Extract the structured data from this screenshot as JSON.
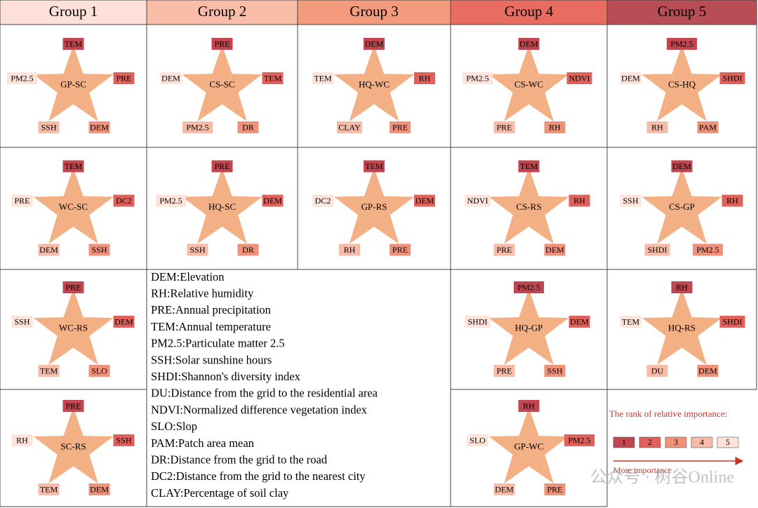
{
  "header": {
    "groups": [
      {
        "label": "Group 1",
        "color": "#fde1d8"
      },
      {
        "label": "Group 2",
        "color": "#f9bda8"
      },
      {
        "label": "Group 3",
        "color": "#f49b7d"
      },
      {
        "label": "Group 4",
        "color": "#e96c61"
      },
      {
        "label": "Group 5",
        "color": "#b94d56"
      }
    ]
  },
  "cells": [
    {
      "name": "GP-SC",
      "factors": [
        "TEM",
        "PRE",
        "DEM",
        "SSH",
        "PM2.5"
      ]
    },
    {
      "name": "CS-SC",
      "factors": [
        "PRE",
        "TEM",
        "DR",
        "PM2.5",
        "DEM"
      ]
    },
    {
      "name": "HQ-WC",
      "factors": [
        "DEM",
        "RH",
        "PRE",
        "CLAY",
        "TEM"
      ]
    },
    {
      "name": "CS-WC",
      "factors": [
        "DEM",
        "NDVI",
        "RH",
        "PRE",
        "PM2.5"
      ]
    },
    {
      "name": "CS-HQ",
      "factors": [
        "PM2.5",
        "SHDI",
        "PAM",
        "RH",
        "DEM"
      ]
    },
    {
      "name": "WC-SC",
      "factors": [
        "TEM",
        "DC2",
        "SSH",
        "DEM",
        "PRE"
      ]
    },
    {
      "name": "HQ-SC",
      "factors": [
        "PRE",
        "DEM",
        "DR",
        "SSH",
        "PM2.5"
      ]
    },
    {
      "name": "GP-RS",
      "factors": [
        "TEM",
        "DEM",
        "PRE",
        "RH",
        "DC2"
      ]
    },
    {
      "name": "CS-RS",
      "factors": [
        "TEM",
        "RH",
        "DEM",
        "PRE",
        "NDVI"
      ]
    },
    {
      "name": "CS-GP",
      "factors": [
        "DEM",
        "RH",
        "PM2.5",
        "SHDI",
        "SSH"
      ]
    },
    {
      "name": "WC-RS",
      "factors": [
        "PRE",
        "DEM",
        "SLO",
        "TEM",
        "SSH"
      ]
    },
    {
      "name": "HQ-GP",
      "factors": [
        "PM2.5",
        "DEM",
        "SSH",
        "PRE",
        "SHDI"
      ]
    },
    {
      "name": "HQ-RS",
      "factors": [
        "RH",
        "SHDI",
        "DEM",
        "DU",
        "TEM"
      ]
    },
    {
      "name": "SC-RS",
      "factors": [
        "PRE",
        "SSH",
        "DEM",
        "TEM",
        "RH"
      ]
    },
    {
      "name": "GP-WC",
      "factors": [
        "RH",
        "PM2.5",
        "PRE",
        "DEM",
        "SLO"
      ]
    }
  ],
  "glossary": [
    "DEM:Elevation",
    "RH:Relative humidity",
    "PRE:Annual precipitation",
    "TEM:Annual temperature",
    "PM2.5:Particulate matter 2.5",
    "SSH:Solar sunshine hours",
    "SHDI:Shannon's diversity index",
    "DU:Distance from the grid to the residential area",
    "NDVI:Normalized difference vegetation index",
    "SLO:Slop",
    "PAM:Patch area mean",
    "DR:Distance from the grid to the road",
    "DC2:Distance from the grid to the nearest city",
    "CLAY:Percentage of soil clay"
  ],
  "legend": {
    "title": "The rank of relative importance:",
    "ranks": [
      {
        "label": "1",
        "color": "#c0464f"
      },
      {
        "label": "2",
        "color": "#e0605a"
      },
      {
        "label": "3",
        "color": "#f0917a"
      },
      {
        "label": "4",
        "color": "#f7bba8"
      },
      {
        "label": "5",
        "color": "#fde3da"
      }
    ],
    "arrow_label": "More importance"
  },
  "watermark": "公众号 · 树谷Online"
}
